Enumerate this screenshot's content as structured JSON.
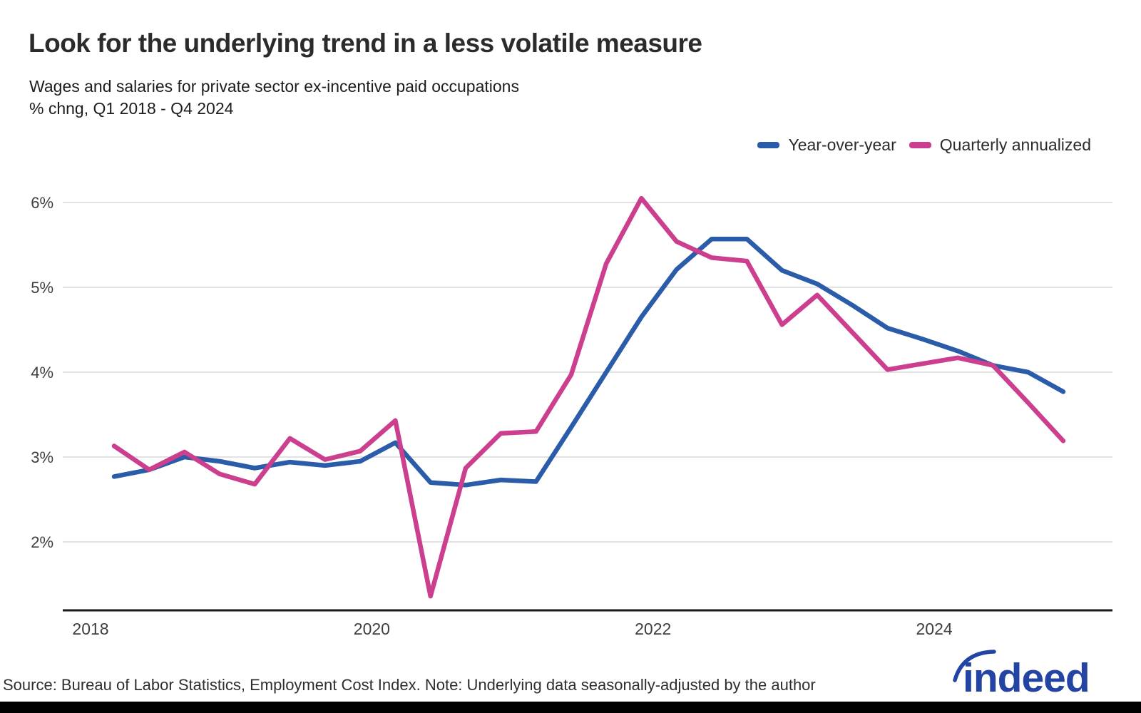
{
  "header": {
    "title": "Look for the underlying trend in a less volatile measure",
    "subtitle_line1": "Wages and salaries for private sector ex-incentive paid occupations",
    "subtitle_line2": "% chng, Q1 2018 - Q4 2024"
  },
  "legend": [
    {
      "label": "Year-over-year",
      "color": "#2b5ca9"
    },
    {
      "label": "Quarterly annualized",
      "color": "#cc3e8e"
    }
  ],
  "footer": {
    "source_note": "Source: Bureau of Labor Statistics, Employment Cost Index. Note: Underlying data seasonally-adjusted by the author",
    "logo_text": "indeed"
  },
  "colors": {
    "grid": "#d9d9d9",
    "axis": "#1a1a1a",
    "tick_text": "#3f3f3f",
    "logo_blue": "#2444a4"
  },
  "chart_data": {
    "type": "line",
    "title": "Look for the underlying trend in a less volatile measure",
    "subtitle": "Wages and salaries for private sector ex-incentive paid occupations, % chng, Q1 2018 - Q4 2024",
    "categories": [
      "Q1 2018",
      "Q2 2018",
      "Q3 2018",
      "Q4 2018",
      "Q1 2019",
      "Q2 2019",
      "Q3 2019",
      "Q4 2019",
      "Q1 2020",
      "Q2 2020",
      "Q3 2020",
      "Q4 2020",
      "Q1 2021",
      "Q2 2021",
      "Q3 2021",
      "Q4 2021",
      "Q1 2022",
      "Q2 2022",
      "Q3 2022",
      "Q4 2022",
      "Q1 2023",
      "Q2 2023",
      "Q3 2023",
      "Q4 2023",
      "Q1 2024",
      "Q2 2024",
      "Q3 2024",
      "Q4 2024"
    ],
    "series": [
      {
        "name": "Year-over-year",
        "color": "#2b5ca9",
        "values": [
          2.77,
          2.85,
          3.0,
          2.95,
          2.87,
          2.94,
          2.9,
          2.95,
          3.17,
          2.7,
          2.67,
          2.73,
          2.71,
          3.35,
          4.0,
          4.65,
          5.21,
          5.57,
          5.57,
          5.2,
          5.04,
          4.79,
          4.52,
          4.39,
          4.25,
          4.08,
          4.0,
          3.77
        ]
      },
      {
        "name": "Quarterly annualized",
        "color": "#cc3e8e",
        "values": [
          3.13,
          2.85,
          3.06,
          2.8,
          2.68,
          3.22,
          2.97,
          3.07,
          3.43,
          1.36,
          2.87,
          3.28,
          3.3,
          3.97,
          5.28,
          6.05,
          5.54,
          5.35,
          5.31,
          4.56,
          4.91,
          4.47,
          4.03,
          4.1,
          4.17,
          4.08,
          3.64,
          3.19
        ]
      }
    ],
    "ylabel": "% change",
    "ylim": [
      1.2,
      6.4
    ],
    "yticks": [
      2,
      3,
      4,
      5,
      6
    ],
    "ytick_labels": [
      "2%",
      "3%",
      "4%",
      "5%",
      "6%"
    ],
    "xtick_years": [
      2018,
      2020,
      2022,
      2024
    ],
    "grid": true,
    "legend_position": "top-right"
  }
}
